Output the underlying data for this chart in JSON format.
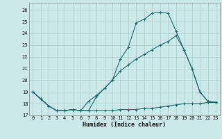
{
  "title": "",
  "xlabel": "Humidex (Indice chaleur)",
  "ylabel": "",
  "bg_color": "#cce9e9",
  "grid_color": "#b0d0d0",
  "line_color": "#1a6b6b",
  "xlim": [
    -0.5,
    23.5
  ],
  "ylim": [
    17,
    26.6
  ],
  "yticks": [
    17,
    18,
    19,
    20,
    21,
    22,
    23,
    24,
    25,
    26
  ],
  "xticks": [
    0,
    1,
    2,
    3,
    4,
    5,
    6,
    7,
    8,
    9,
    10,
    11,
    12,
    13,
    14,
    15,
    16,
    17,
    18,
    19,
    20,
    21,
    22,
    23
  ],
  "line1_x": [
    0,
    1,
    2,
    3,
    4,
    5,
    6,
    7,
    8,
    9,
    10,
    11,
    12,
    13,
    14,
    15,
    16,
    17,
    18,
    19,
    20,
    21,
    22,
    23
  ],
  "line1_y": [
    19.0,
    18.4,
    17.8,
    17.4,
    17.4,
    17.5,
    17.4,
    17.4,
    18.6,
    19.3,
    20.0,
    21.8,
    22.8,
    24.9,
    25.2,
    25.7,
    25.8,
    25.7,
    24.2,
    22.6,
    21.0,
    19.0,
    18.2,
    18.1
  ],
  "line2_x": [
    0,
    1,
    2,
    3,
    4,
    5,
    6,
    7,
    8,
    9,
    10,
    11,
    12,
    13,
    14,
    15,
    16,
    17,
    18,
    19,
    20,
    21,
    22,
    23
  ],
  "line2_y": [
    19.0,
    18.4,
    17.8,
    17.4,
    17.4,
    17.5,
    17.4,
    18.2,
    18.7,
    19.3,
    20.0,
    20.8,
    21.3,
    21.8,
    22.2,
    22.6,
    23.0,
    23.3,
    23.8,
    22.6,
    21.0,
    19.0,
    18.2,
    18.1
  ],
  "line3_x": [
    0,
    1,
    2,
    3,
    4,
    5,
    6,
    7,
    8,
    9,
    10,
    11,
    12,
    13,
    14,
    15,
    16,
    17,
    18,
    19,
    20,
    21,
    22,
    23
  ],
  "line3_y": [
    19.0,
    18.4,
    17.8,
    17.4,
    17.4,
    17.5,
    17.4,
    17.4,
    17.4,
    17.4,
    17.4,
    17.5,
    17.5,
    17.5,
    17.6,
    17.6,
    17.7,
    17.8,
    17.9,
    18.0,
    18.0,
    18.0,
    18.1,
    18.1
  ]
}
